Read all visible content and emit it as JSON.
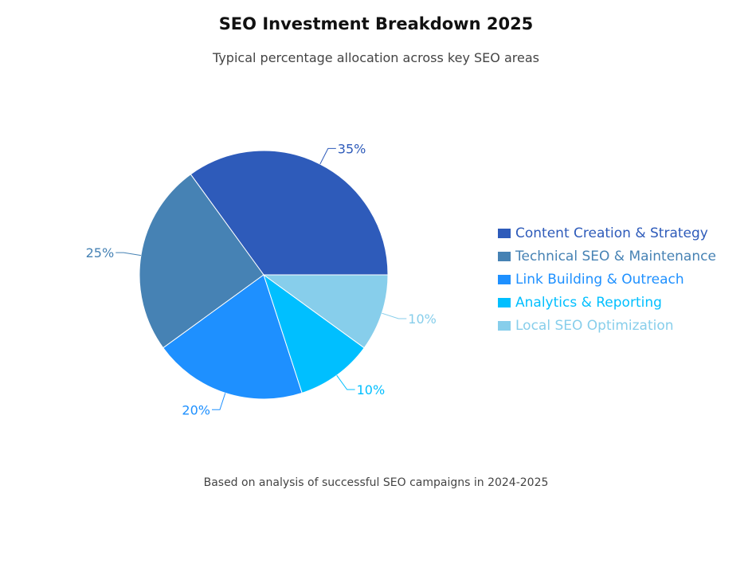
{
  "chart_data": {
    "type": "pie",
    "title": "SEO Investment Breakdown 2025",
    "subtitle": "Typical percentage allocation across key SEO areas",
    "footnote": "Based on analysis of successful SEO campaigns in 2024-2025",
    "legend_position": "right",
    "categories": [
      "Content Creation & Strategy",
      "Technical SEO & Maintenance",
      "Link Building & Outreach",
      "Analytics & Reporting",
      "Local SEO Optimization"
    ],
    "values": [
      35,
      25,
      20,
      10,
      10
    ],
    "labels": [
      "35%",
      "25%",
      "20%",
      "10%",
      "10%"
    ],
    "colors": [
      "#2E5BBA",
      "#4682B4",
      "#1E90FF",
      "#00BFFF",
      "#87CEEB"
    ]
  }
}
